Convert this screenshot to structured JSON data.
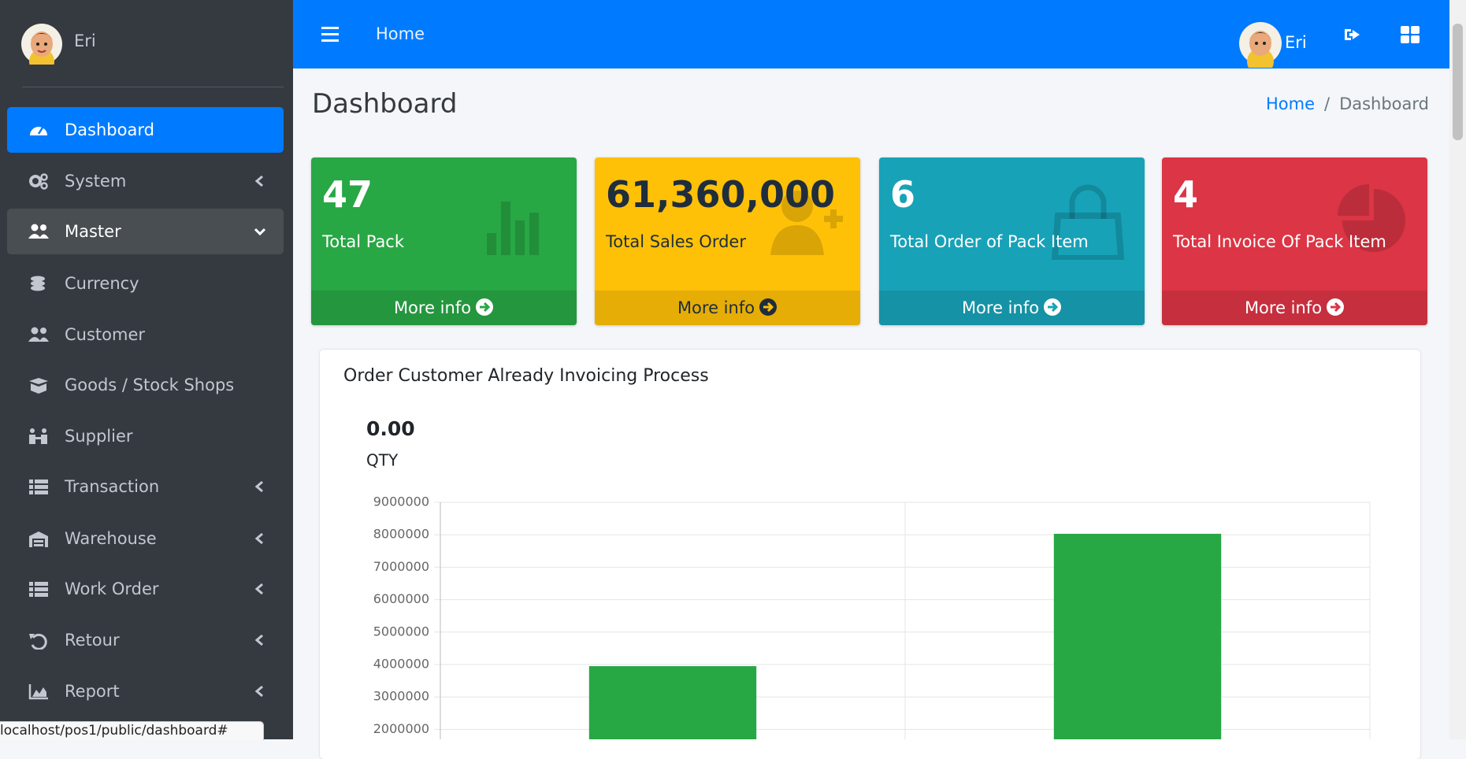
{
  "sidebar": {
    "user": "Eri",
    "menu": [
      "Dashboard",
      "System",
      "Master",
      "Currency",
      "Customer",
      "Goods / Stock Shops",
      "Supplier",
      "Transaction",
      "Warehouse",
      "Work Order",
      "Retour",
      "Report"
    ]
  },
  "navbar": {
    "home": "Home",
    "user": "Eri"
  },
  "header": {
    "title": "Dashboard",
    "breadcrumb": [
      "Home",
      "Dashboard"
    ]
  },
  "cards": [
    {
      "value": "47",
      "label": "Total Pack",
      "link": "More info"
    },
    {
      "value": "61,360,000",
      "label": "Total Sales Order",
      "link": "More info"
    },
    {
      "value": "6",
      "label": "Total Order of Pack Item",
      "link": "More info"
    },
    {
      "value": "4",
      "label": "Total Invoice Of Pack Item",
      "link": "More info"
    }
  ],
  "chart_data": {
    "type": "bar",
    "title": "Order Customer Already Invoicing Process",
    "subtitle": "0.00",
    "ylabel": "QTY",
    "categories": [
      null,
      null
    ],
    "values": [
      3950000,
      8030000
    ],
    "color": "#28a745",
    "ylim": [
      0,
      9000000
    ],
    "yticks": [
      2000000,
      3000000,
      4000000,
      5000000,
      6000000,
      7000000,
      8000000,
      9000000
    ],
    "grid": true
  },
  "status_bar": "localhost/pos1/public/dashboard#"
}
